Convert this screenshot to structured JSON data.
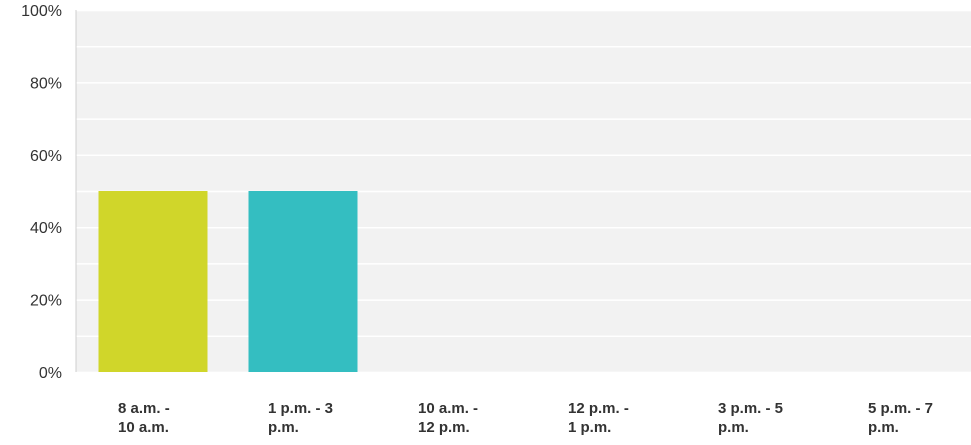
{
  "chart_data": {
    "type": "bar",
    "categories": [
      [
        "8 a.m. -",
        "10 a.m."
      ],
      [
        "1 p.m. - 3",
        "p.m."
      ],
      [
        "10 a.m. -",
        "12 p.m."
      ],
      [
        "12 p.m. -",
        "1 p.m."
      ],
      [
        "3 p.m. - 5",
        "p.m."
      ],
      [
        "5 p.m. - 7",
        "p.m."
      ]
    ],
    "values": [
      50,
      50,
      0,
      0,
      0,
      0
    ],
    "colors": [
      "#d0d62a",
      "#34bec1",
      "#7f7f7f",
      "#7f7f7f",
      "#7f7f7f",
      "#7f7f7f"
    ],
    "yticks": [
      "0%",
      "20%",
      "40%",
      "60%",
      "80%",
      "100%"
    ],
    "ylim": [
      0,
      100
    ],
    "grid": true,
    "plot_background": "#f2f2f2",
    "title": "",
    "xlabel": "",
    "ylabel": ""
  }
}
